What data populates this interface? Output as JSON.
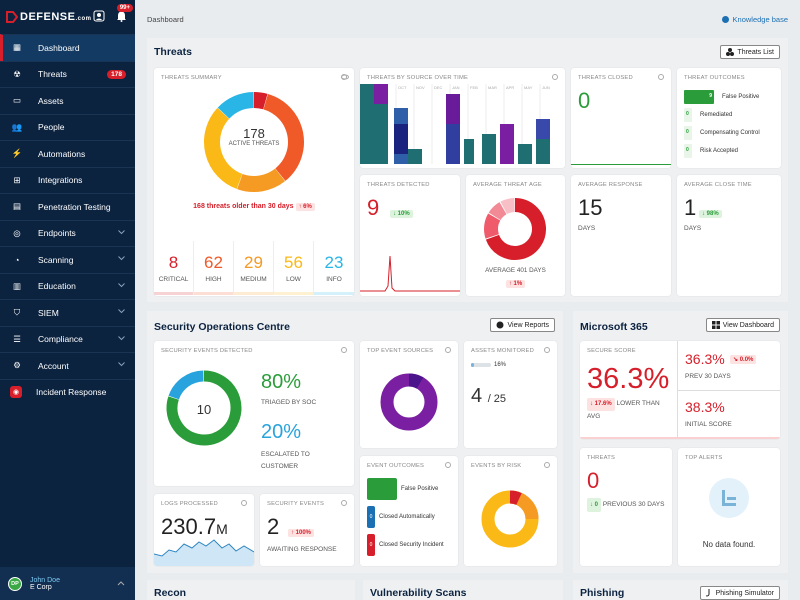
{
  "app": {
    "logo": "DEFENSE",
    "logo_suffix": "com",
    "notif_badge": "99+"
  },
  "nav": [
    {
      "label": "Dashboard",
      "icon": "dashboard-icon",
      "active": true
    },
    {
      "label": "Threats",
      "icon": "biohazard-icon",
      "badge": "178"
    },
    {
      "label": "Assets",
      "icon": "monitor-icon"
    },
    {
      "label": "People",
      "icon": "people-icon"
    },
    {
      "label": "Automations",
      "icon": "lightning-icon"
    },
    {
      "label": "Integrations",
      "icon": "network-icon"
    },
    {
      "label": "Penetration Testing",
      "icon": "grid-icon"
    },
    {
      "label": "Endpoints",
      "icon": "target-icon",
      "chev": true
    },
    {
      "label": "Scanning",
      "icon": "radar-icon",
      "chev": true
    },
    {
      "label": "Education",
      "icon": "book-icon",
      "chev": true
    },
    {
      "label": "SIEM",
      "icon": "shield-icon",
      "chev": true
    },
    {
      "label": "Compliance",
      "icon": "checklist-icon",
      "chev": true
    },
    {
      "label": "Account",
      "icon": "gear-icon",
      "chev": true
    },
    {
      "label": "Incident Response",
      "icon": "alarm-icon"
    }
  ],
  "user": {
    "initials": "DP",
    "name": "John Doe",
    "org": "E Corp"
  },
  "topbar": {
    "breadcrumb": "Dashboard",
    "kb": "Knowledge base"
  },
  "threats": {
    "title": "Threats",
    "btn": "Threats List",
    "summary": {
      "title": "THREATS SUMMARY",
      "count": "178",
      "label": "ACTIVE THREATS",
      "older": "168 threats older than 30 days",
      "older_delta": "6%",
      "severities": [
        {
          "n": "8",
          "l": "CRITICAL",
          "c": "#d61f2a"
        },
        {
          "n": "62",
          "l": "HIGH",
          "c": "#f05a28"
        },
        {
          "n": "29",
          "l": "MEDIUM",
          "c": "#f59a23"
        },
        {
          "n": "56",
          "l": "LOW",
          "c": "#fbb917"
        },
        {
          "n": "23",
          "l": "INFO",
          "c": "#29b6e6"
        }
      ]
    },
    "by_source_title": "THREATS BY SOURCE OVER TIME",
    "by_source_months": [
      "SEP",
      "OCT",
      "NOV",
      "DEC",
      "JAN",
      "FEB",
      "MAR",
      "APR",
      "MAY",
      "JUN"
    ],
    "closed": {
      "title": "THREATS CLOSED",
      "value": "0"
    },
    "outcomes": {
      "title": "THREAT OUTCOMES",
      "items": [
        {
          "v": "9",
          "l": "False Positive"
        },
        {
          "v": "0",
          "l": "Remediated"
        },
        {
          "v": "0",
          "l": "Compensating Control"
        },
        {
          "v": "0",
          "l": "Risk Accepted"
        }
      ]
    },
    "detected": {
      "title": "THREATS DETECTED",
      "value": "9",
      "delta": "10%"
    },
    "age": {
      "title": "AVERAGE THREAT AGE",
      "label": "AVERAGE 401 DAYS",
      "delta": "1%"
    },
    "response": {
      "title": "AVERAGE RESPONSE",
      "value": "15",
      "unit": "DAYS"
    },
    "close": {
      "title": "AVERAGE CLOSE TIME",
      "value": "1",
      "unit": "DAYS",
      "delta": "98%"
    }
  },
  "soc": {
    "title": "Security Operations Centre",
    "btn": "View Reports",
    "events": {
      "title": "SECURITY EVENTS DETECTED",
      "count": "10",
      "p1": "80%",
      "l1": "TRIAGED BY SOC",
      "p2": "20%",
      "l2": "ESCALATED TO CUSTOMER"
    },
    "sources_title": "TOP EVENT SOURCES",
    "assets": {
      "title": "ASSETS MONITORED",
      "pct": "16%",
      "value": "4",
      "total": "/ 25",
      "fill": 0.16
    },
    "outcomes": {
      "title": "EVENT OUTCOMES",
      "items": [
        {
          "v": "",
          "l": "False Positive",
          "c": "#2a9d3a"
        },
        {
          "v": "0",
          "l": "Closed Automatically",
          "c": "#1b6fb3"
        },
        {
          "v": "0",
          "l": "Closed Security Incident",
          "c": "#d61f2a"
        }
      ]
    },
    "risk_title": "EVENTS BY RISK",
    "logs": {
      "title": "LOGS PROCESSED",
      "value": "230.7",
      "unit": "M"
    },
    "sec_events": {
      "title": "SECURITY EVENTS",
      "value": "2",
      "delta": "100%",
      "label": "AWAITING RESPONSE"
    }
  },
  "m365": {
    "title": "Microsoft 365",
    "btn": "View Dashboard",
    "score": {
      "title": "SECURE SCORE",
      "value": "36.3%",
      "delta": "17.6%",
      "label": "LOWER THAN AVG"
    },
    "prev": {
      "value": "36.3%",
      "delta": "0.0%",
      "label": "PREV 30 DAYS"
    },
    "initial": {
      "value": "38.3%",
      "label": "INITIAL SCORE"
    },
    "threats": {
      "title": "THREATS",
      "value": "0",
      "delta": "0",
      "label": "PREVIOUS 30 DAYS"
    },
    "alerts": {
      "title": "TOP ALERTS",
      "empty": "No data found."
    }
  },
  "bottom": {
    "recon": "Recon",
    "vuln": "Vulnerability Scans",
    "phish": "Phishing",
    "phish_btn": "Phishing Simulator"
  },
  "colors": {
    "navy": "#0c2340",
    "red": "#d61f2a",
    "green": "#2a9d3a",
    "blue": "#1b6fb3"
  }
}
